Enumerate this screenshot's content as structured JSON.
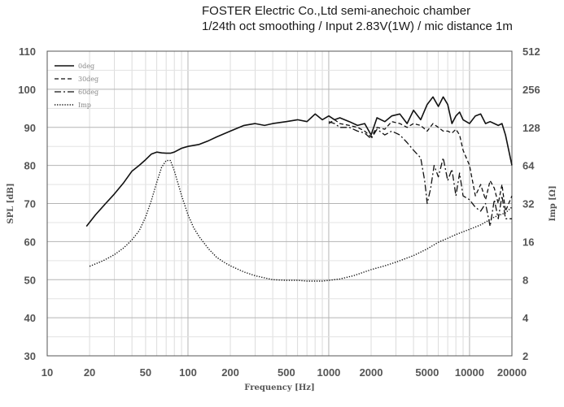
{
  "header": {
    "line1": "FOSTER Electric Co.,Ltd  semi-anechoic chamber",
    "line2": "1/24th oct smoothing / Input 2.83V(1W) / mic distance 1m"
  },
  "chart_data": {
    "type": "line",
    "xlabel": "Frequency [Hz]",
    "ylabel": "SPL [dB]",
    "y2label": "Imp [Ω]",
    "xscale": "log",
    "xlim": [
      10,
      20000
    ],
    "ylim": [
      30,
      110
    ],
    "y2lim": [
      2,
      512
    ],
    "y2scale": "log2",
    "grid": true,
    "legend_position": "top-left",
    "x_ticks": [
      "10",
      "20",
      "50",
      "100",
      "200",
      "500",
      "1000",
      "2000",
      "5000",
      "10000",
      "20000"
    ],
    "x_tick_values": [
      10,
      20,
      50,
      100,
      200,
      500,
      1000,
      2000,
      5000,
      10000,
      20000
    ],
    "y_ticks": [
      "30",
      "40",
      "50",
      "60",
      "70",
      "80",
      "90",
      "100",
      "110"
    ],
    "y2_ticks": [
      "2",
      "4",
      "8",
      "16",
      "32",
      "64",
      "128",
      "256",
      "512"
    ],
    "series": [
      {
        "name": "0deg",
        "axis": "left",
        "dash": "solid",
        "x": [
          19,
          22,
          26,
          30,
          35,
          40,
          45,
          50,
          55,
          60,
          65,
          70,
          75,
          80,
          90,
          100,
          120,
          140,
          160,
          200,
          250,
          300,
          350,
          400,
          500,
          600,
          700,
          800,
          900,
          1000,
          1100,
          1200,
          1400,
          1600,
          1800,
          2000,
          2200,
          2500,
          2800,
          3200,
          3600,
          4000,
          4500,
          5000,
          5500,
          6000,
          6500,
          7000,
          7500,
          8000,
          8500,
          9000,
          10000,
          11000,
          12000,
          13000,
          14000,
          15000,
          16000,
          17000,
          18000,
          20000
        ],
        "y": [
          64,
          67,
          70,
          72.5,
          75.5,
          78.5,
          80,
          81.5,
          83,
          83.5,
          83.3,
          83.2,
          83.2,
          83.5,
          84.5,
          85,
          85.5,
          86.5,
          87.5,
          89,
          90.5,
          91,
          90.5,
          91,
          91.5,
          92,
          91.5,
          93.5,
          92,
          93,
          92,
          92.5,
          91.5,
          90.5,
          91,
          88,
          92.5,
          91.5,
          93,
          93.5,
          91,
          94.5,
          92,
          96,
          98,
          95.5,
          98,
          96,
          91,
          93,
          94,
          92,
          91,
          93,
          93.5,
          91,
          91.5,
          91,
          90.5,
          91,
          88,
          80
        ]
      },
      {
        "name": "30deg",
        "axis": "left",
        "dash": "dashed",
        "x": [
          1000,
          1100,
          1200,
          1400,
          1600,
          1800,
          2000,
          2200,
          2500,
          2800,
          3200,
          3600,
          4000,
          4500,
          5000,
          5500,
          6000,
          6500,
          7000,
          7500,
          8000,
          8500,
          9000,
          10000,
          11000,
          12000,
          13000,
          14000,
          15000,
          16000,
          17000,
          18000,
          20000
        ],
        "y": [
          91,
          92,
          91,
          90.5,
          90,
          89,
          87.5,
          90,
          89.5,
          91.5,
          91,
          90,
          91,
          90.5,
          89,
          91,
          90,
          89,
          89,
          88.5,
          89.5,
          88,
          84,
          80,
          72,
          75,
          71,
          76,
          74,
          70,
          75,
          68,
          72
        ]
      },
      {
        "name": "60deg",
        "axis": "left",
        "dash": "dashdot",
        "x": [
          1000,
          1100,
          1200,
          1400,
          1600,
          1800,
          2000,
          2200,
          2500,
          2800,
          3200,
          3600,
          4000,
          4500,
          4800,
          5000,
          5300,
          5600,
          6000,
          6500,
          7000,
          7500,
          8000,
          8500,
          9000,
          10000,
          11000,
          12000,
          13000,
          14000,
          15000,
          16000,
          17000,
          18000,
          20000
        ],
        "y": [
          91.5,
          91,
          90,
          90,
          89,
          88.5,
          87,
          89.5,
          88,
          89,
          88,
          86,
          84,
          82,
          76,
          70,
          74,
          80,
          77,
          82,
          76,
          79,
          72,
          78,
          72,
          71,
          69,
          68,
          70,
          64,
          71,
          66,
          72,
          66,
          66
        ]
      },
      {
        "name": "Imp",
        "axis": "right",
        "dash": "dotted",
        "x": [
          20,
          25,
          30,
          35,
          40,
          45,
          50,
          55,
          60,
          65,
          70,
          75,
          80,
          85,
          90,
          100,
          110,
          120,
          140,
          160,
          180,
          200,
          250,
          300,
          400,
          500,
          600,
          700,
          800,
          900,
          1000,
          1200,
          1500,
          2000,
          2500,
          3000,
          4000,
          5000,
          6000,
          7000,
          8000,
          10000,
          12000,
          15000,
          18000,
          20000
        ],
        "y": [
          10.2,
          11.3,
          12.6,
          14.3,
          16.5,
          19.5,
          25,
          34,
          47,
          62,
          70,
          70,
          58,
          46,
          37,
          26,
          20.5,
          17.5,
          14,
          12,
          11,
          10.3,
          9.2,
          8.6,
          8.0,
          7.9,
          7.9,
          7.8,
          7.8,
          7.8,
          7.9,
          8.1,
          8.6,
          9.6,
          10.3,
          11,
          12.4,
          14,
          15.8,
          17,
          18.2,
          20,
          21.7,
          25,
          27,
          30
        ]
      }
    ]
  }
}
